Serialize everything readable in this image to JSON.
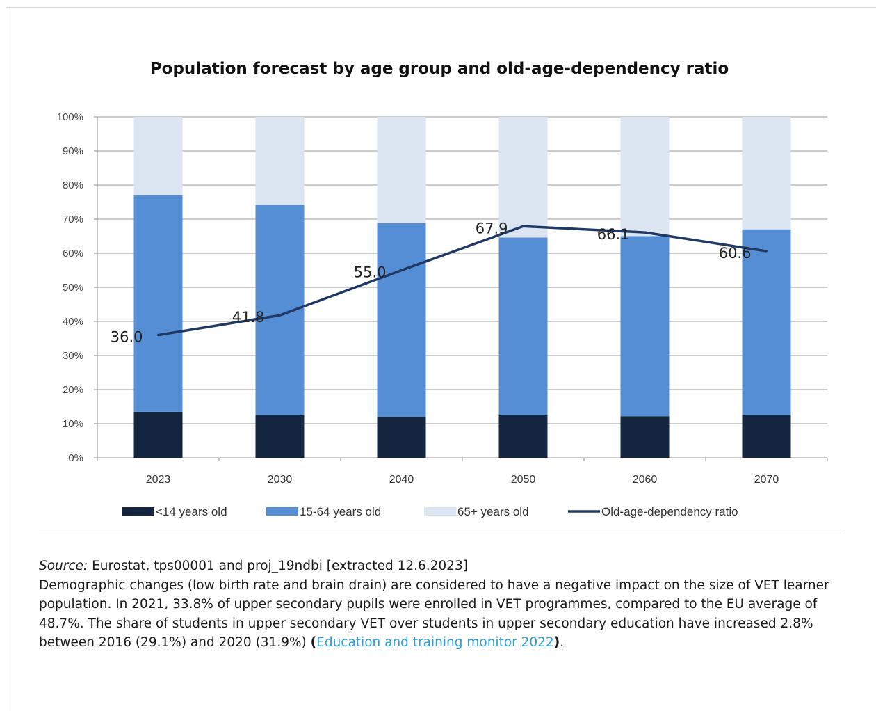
{
  "chart_data": {
    "type": "bar",
    "stacked": true,
    "title": "Population forecast by age group and old-age-dependency ratio",
    "categories": [
      "2023",
      "2030",
      "2040",
      "2050",
      "2060",
      "2070"
    ],
    "y_ticks": [
      "0%",
      "10%",
      "20%",
      "30%",
      "40%",
      "50%",
      "60%",
      "70%",
      "80%",
      "90%",
      "100%"
    ],
    "ylim": [
      0,
      100
    ],
    "grid": true,
    "legend_position": "bottom",
    "series": [
      {
        "name": "<14 years old",
        "type": "bar",
        "color": "#13253f",
        "values": [
          13.5,
          12.5,
          12,
          12.5,
          12.2,
          12.5
        ]
      },
      {
        "name": "15-64 years old",
        "type": "bar",
        "color": "#558ed5",
        "values": [
          63.5,
          61.7,
          56.8,
          52.1,
          52.8,
          54.5
        ]
      },
      {
        "name": "65+ years old",
        "type": "bar",
        "color": "#dce6f2",
        "values": [
          23,
          25.8,
          31.2,
          35.4,
          35,
          33
        ]
      },
      {
        "name": "Old-age-dependency ratio",
        "type": "line",
        "color": "#1f3864",
        "values": [
          36.0,
          41.8,
          55.0,
          67.9,
          66.1,
          60.6
        ],
        "labels": [
          "36.0",
          "41.8",
          "55.0",
          "67.9",
          "66.1",
          "60.6"
        ]
      }
    ]
  },
  "text": {
    "source_label": "Source:",
    "source_text": " Eurostat, tps00001 and proj_19ndbi [extracted 12.6.2023]",
    "paragraph_main": "Demographic changes (low birth rate and brain drain) are considered to have a negative impact on the size of VET learner population. In 2021, 33.8% of upper secondary pupils were enrolled in VET programmes, compared to the EU average of 48.7%. The share of students in upper secondary VET over students in upper secondary education have increased 2.8% between 2016 (29.1%) and 2020 (31.9%) ",
    "paren_open": "(",
    "link_text": "Education and training monitor 2022",
    "paren_close": ")",
    "end_punct": "."
  }
}
